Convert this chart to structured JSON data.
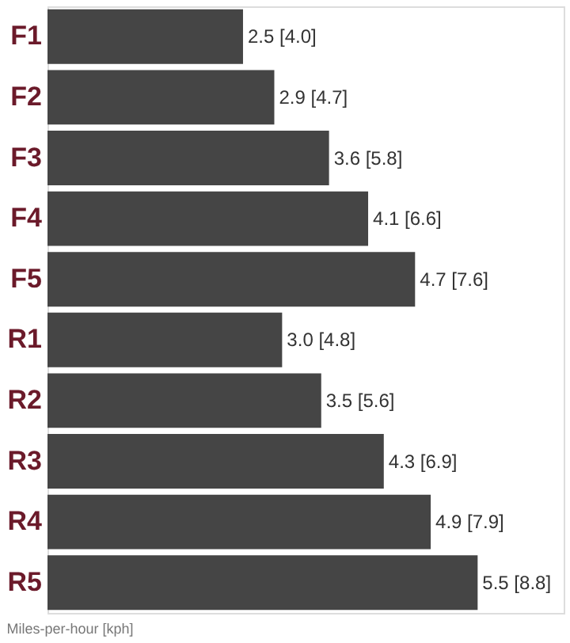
{
  "chart_data": {
    "type": "bar",
    "orientation": "horizontal",
    "categories": [
      "F1",
      "F2",
      "F3",
      "F4",
      "F5",
      "R1",
      "R2",
      "R3",
      "R4",
      "R5"
    ],
    "values": [
      2.5,
      2.9,
      3.6,
      4.1,
      4.7,
      3.0,
      3.5,
      4.3,
      4.9,
      5.5
    ],
    "color": "#454545",
    "value_labels": [
      "2.5 [4.0]",
      "2.9 [4.7]",
      "3.6 [5.8]",
      "4.1 [6.6]",
      "4.7 [7.6]",
      "3.0 [4.8]",
      "3.5 [5.6]",
      "4.3 [6.9]",
      "4.9 [7.9]",
      "5.5 [8.8]"
    ],
    "tick_labels": "y",
    "annotations": [
      "Miles-per-hour [kph]"
    ]
  }
}
